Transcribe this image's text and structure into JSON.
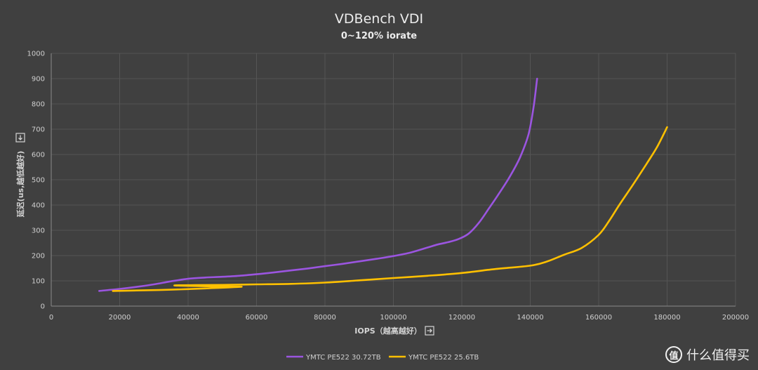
{
  "chart_data": {
    "type": "line",
    "title": "VDBench VDI",
    "subtitle": "0~120% iorate",
    "xlabel": "IOPS（越高越好）",
    "ylabel": "延迟(us,越低越好)",
    "x_axis_icon": "right-arrow-box-icon",
    "y_axis_icon": "down-arrow-box-icon",
    "xlim": [
      0,
      200000
    ],
    "ylim": [
      0,
      1000
    ],
    "x_ticks": [
      0,
      20000,
      40000,
      60000,
      80000,
      100000,
      120000,
      140000,
      160000,
      180000,
      200000
    ],
    "y_ticks": [
      0,
      100,
      200,
      300,
      400,
      500,
      600,
      700,
      800,
      900,
      1000
    ],
    "x_tick_labels": [
      "0",
      "20000",
      "40000",
      "60000",
      "80000",
      "100000",
      "120000",
      "140000",
      "160000",
      "180000",
      "200000"
    ],
    "y_tick_labels": [
      "0",
      "100",
      "200",
      "300",
      "400",
      "500",
      "600",
      "700",
      "800",
      "900",
      "1000"
    ],
    "grid": true,
    "legend_position": "bottom",
    "series": [
      {
        "name": "YMTC PE522 30.72TB",
        "color": "#9b55e0",
        "points": [
          [
            14000,
            60
          ],
          [
            20000,
            68
          ],
          [
            25000,
            76
          ],
          [
            30000,
            86
          ],
          [
            35000,
            98
          ],
          [
            40000,
            108
          ],
          [
            45000,
            113
          ],
          [
            50000,
            116
          ],
          [
            55000,
            120
          ],
          [
            60000,
            126
          ],
          [
            65000,
            133
          ],
          [
            70000,
            141
          ],
          [
            75000,
            149
          ],
          [
            80000,
            158
          ],
          [
            85000,
            167
          ],
          [
            90000,
            177
          ],
          [
            95000,
            187
          ],
          [
            100000,
            198
          ],
          [
            105000,
            212
          ],
          [
            110000,
            232
          ],
          [
            113000,
            244
          ],
          [
            116000,
            253
          ],
          [
            119000,
            265
          ],
          [
            122000,
            287
          ],
          [
            125000,
            330
          ],
          [
            128000,
            388
          ],
          [
            131000,
            448
          ],
          [
            134000,
            512
          ],
          [
            137000,
            588
          ],
          [
            139500,
            680
          ],
          [
            141000,
            790
          ],
          [
            142000,
            900
          ]
        ]
      },
      {
        "name": "YMTC PE522 25.6TB",
        "color": "#ffc000",
        "points": [
          [
            18000,
            60
          ],
          [
            25000,
            62
          ],
          [
            35000,
            65
          ],
          [
            45000,
            70
          ],
          [
            55000,
            76
          ],
          [
            54000,
            77
          ],
          [
            48000,
            78
          ],
          [
            40000,
            80
          ],
          [
            36000,
            82
          ],
          [
            42000,
            83
          ],
          [
            50000,
            84
          ],
          [
            60000,
            86
          ],
          [
            70000,
            88
          ],
          [
            80000,
            93
          ],
          [
            90000,
            102
          ],
          [
            100000,
            111
          ],
          [
            110000,
            120
          ],
          [
            120000,
            131
          ],
          [
            130000,
            147
          ],
          [
            140000,
            160
          ],
          [
            145000,
            177
          ],
          [
            150000,
            204
          ],
          [
            155000,
            230
          ],
          [
            160000,
            282
          ],
          [
            163000,
            336
          ],
          [
            166000,
            400
          ],
          [
            170000,
            480
          ],
          [
            174000,
            563
          ],
          [
            177000,
            628
          ],
          [
            180000,
            708
          ]
        ]
      }
    ]
  },
  "watermark": {
    "logo_text": "值",
    "text": "什么值得买"
  }
}
